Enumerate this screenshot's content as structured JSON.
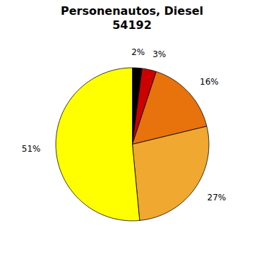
{
  "chart_data": {
    "type": "pie",
    "title": "Personenautos, Diesel",
    "subtitle": "54192",
    "values": [
      2,
      3,
      16,
      27,
      51
    ],
    "value_labels": [
      "2%",
      "3%",
      "16%",
      "27%",
      "51%"
    ],
    "colors": [
      "#000000",
      "#cc0000",
      "#e8720c",
      "#f0a830",
      "#ffff00"
    ],
    "data_labels": true
  }
}
